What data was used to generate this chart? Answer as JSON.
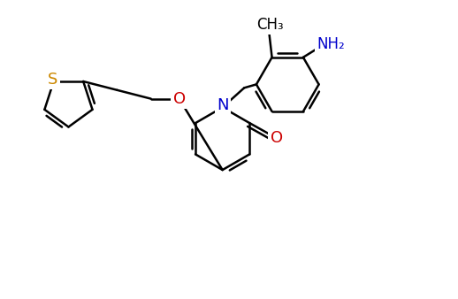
{
  "background": "#ffffff",
  "bond_color": "#000000",
  "bond_width": 1.8,
  "figsize": [
    5.18,
    3.38
  ],
  "dpi": 100,
  "S_color": "#cc8800",
  "O_color": "#cc0000",
  "N_color": "#0000cc",
  "NH2_color": "#0000cc",
  "C_color": "#000000",
  "xlim": [
    0,
    10.5
  ],
  "ylim": [
    0.5,
    7.0
  ]
}
